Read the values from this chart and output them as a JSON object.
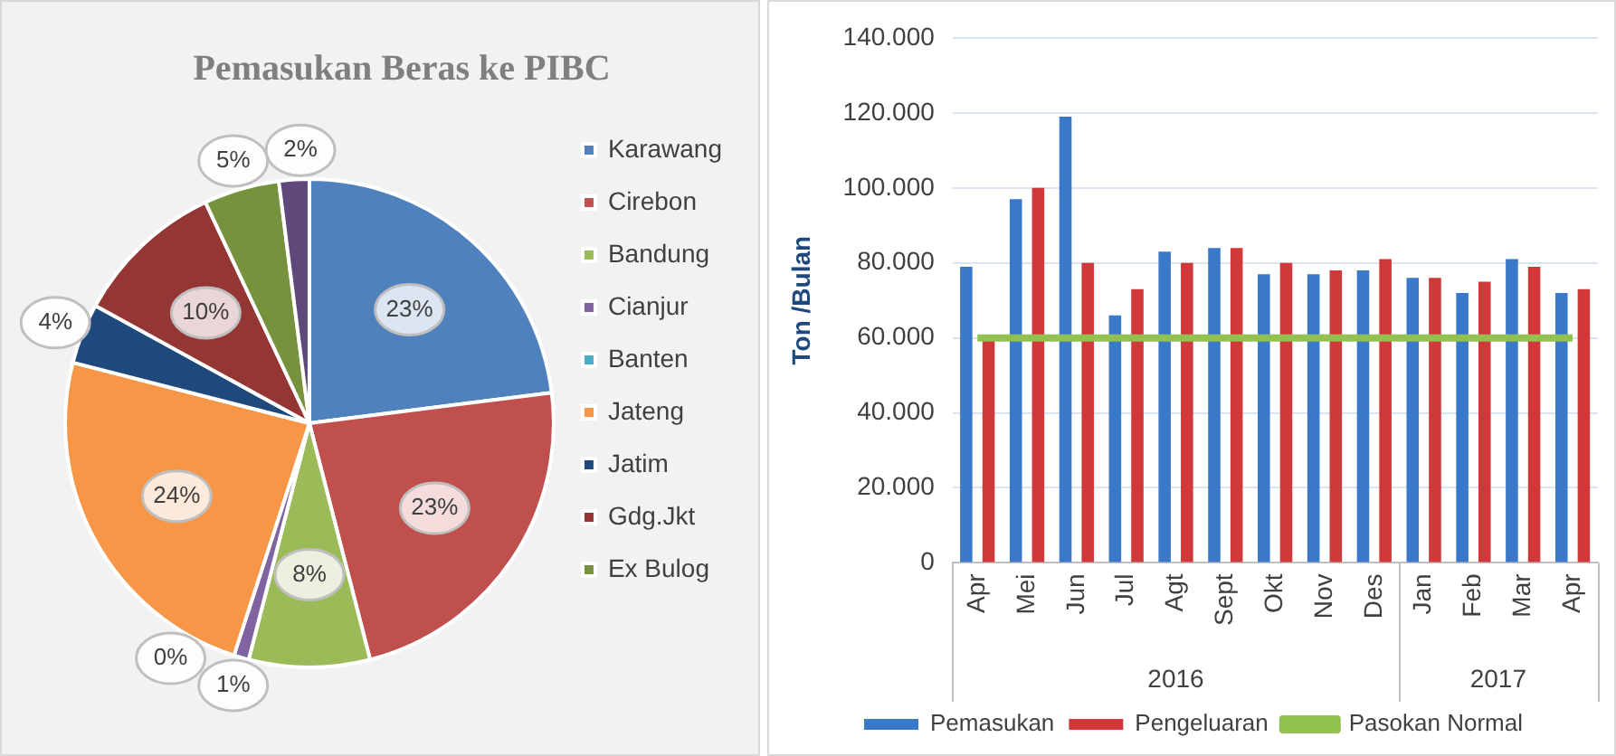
{
  "chart_data": [
    {
      "type": "pie",
      "title": "Pemasukan Beras ke PIBC",
      "categories": [
        "Karawang",
        "Cirebon",
        "Bandung",
        "Cianjur",
        "Banten",
        "Jateng",
        "Jatim",
        "Gdg.Jkt",
        "Ex Bulog",
        null
      ],
      "values": [
        23,
        23,
        8,
        1,
        0,
        24,
        4,
        10,
        5,
        2
      ],
      "colors": [
        "#4f81bd",
        "#c0504d",
        "#9bbb59",
        "#8064a2",
        "#4bacc6",
        "#f79646",
        "#1f497d",
        "#943634",
        "#76923c",
        "#5f497a"
      ],
      "value_labels": [
        "23%",
        "23%",
        "8%",
        "1%",
        "0%",
        "24%",
        "4%",
        "10%",
        "5%",
        "2%"
      ],
      "legend": "right"
    },
    {
      "type": "bar",
      "ylabel": "Ton /Bulan",
      "categories": [
        "Apr",
        "Mei",
        "Jun",
        "Jul",
        "Agt",
        "Sept",
        "Okt",
        "Nov",
        "Des",
        "Jan",
        "Feb",
        "Mar",
        "Apr"
      ],
      "series": [
        {
          "name": "Pemasukan",
          "color": "#3a78c9",
          "values": [
            79000,
            97000,
            119000,
            66000,
            83000,
            84000,
            77000,
            77000,
            78000,
            76000,
            72000,
            81000,
            72000
          ]
        },
        {
          "name": "Pengeluaran",
          "color": "#d0383a",
          "values": [
            60000,
            100000,
            80000,
            73000,
            80000,
            84000,
            80000,
            78000,
            81000,
            76000,
            75000,
            79000,
            73000
          ]
        },
        {
          "name": "Pasokan Normal",
          "type": "line",
          "color": "#92c14f",
          "values": [
            60000,
            60000,
            60000,
            60000,
            60000,
            60000,
            60000,
            60000,
            60000,
            60000,
            60000,
            60000,
            60000
          ]
        }
      ],
      "ylim": [
        0,
        140000
      ],
      "yticks": [
        {
          "value": 0,
          "label": "0"
        },
        {
          "value": 20000,
          "label": "20.000"
        },
        {
          "value": 40000,
          "label": "40.000"
        },
        {
          "value": 60000,
          "label": "60.000"
        },
        {
          "value": 80000,
          "label": "80.000"
        },
        {
          "value": 100000,
          "label": "100.000"
        },
        {
          "value": 120000,
          "label": "120.000"
        },
        {
          "value": 140000,
          "label": "140.000"
        }
      ],
      "annotations": [
        "2016",
        "2017"
      ],
      "grid": "y",
      "legend": "bottom",
      "marker": "none"
    }
  ]
}
